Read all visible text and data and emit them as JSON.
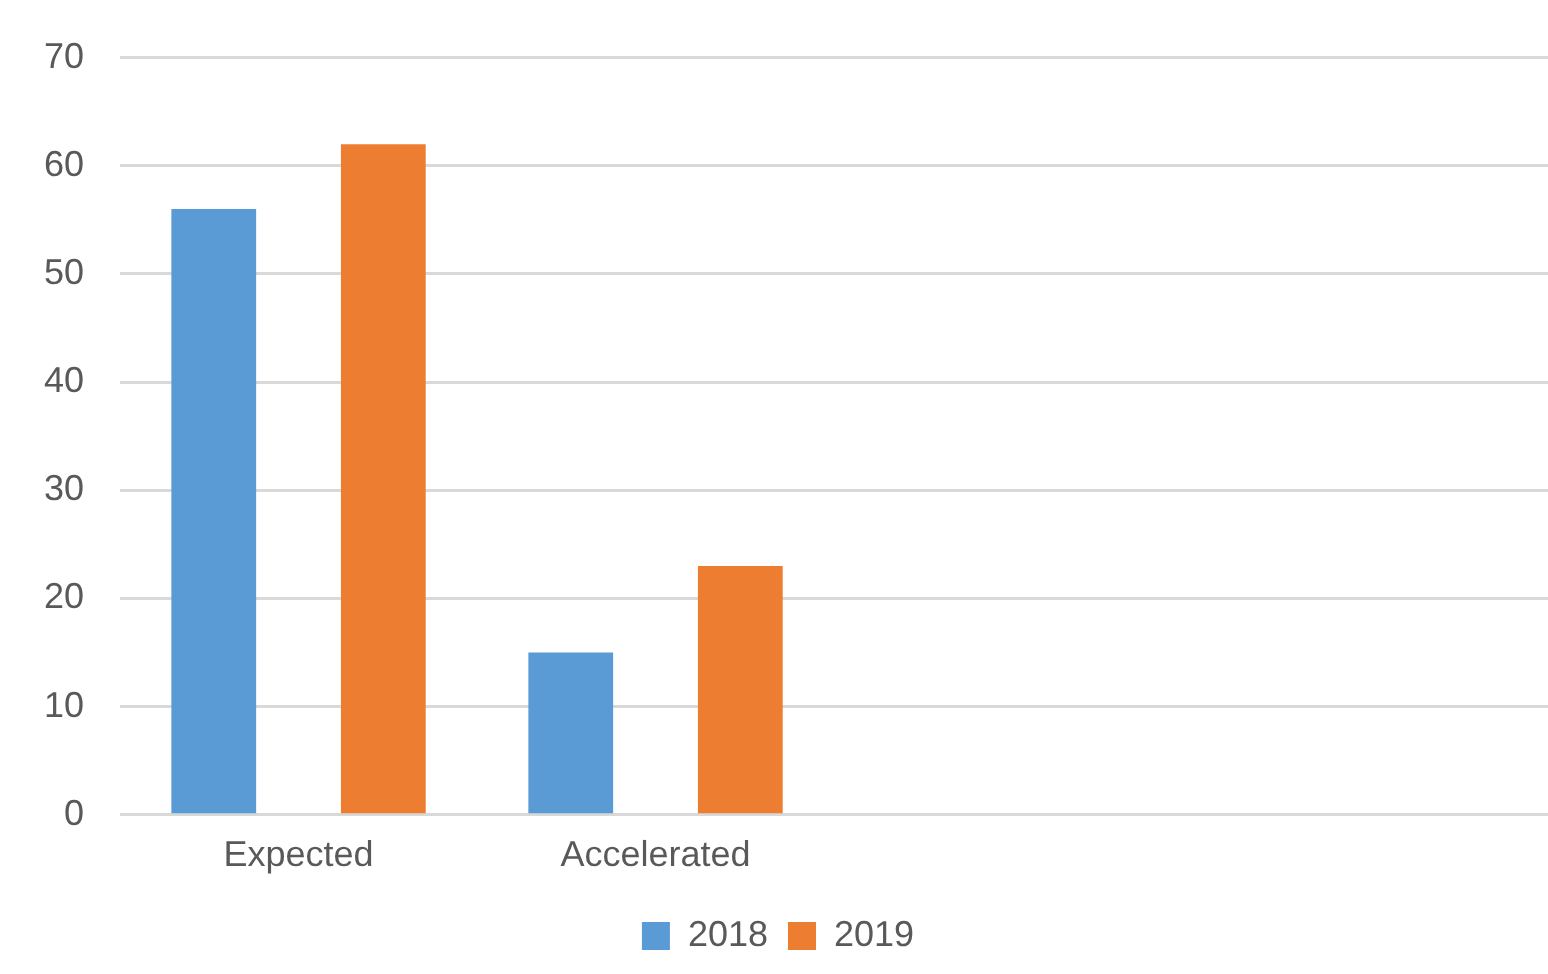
{
  "chart_data": {
    "type": "bar",
    "categories": [
      "Expected",
      "Accelerated",
      null,
      null
    ],
    "series": [
      {
        "name": "2018",
        "color": "#5b9bd5",
        "values": [
          56,
          15,
          null,
          null
        ]
      },
      {
        "name": "2019",
        "color": "#ed7d31",
        "values": [
          62,
          23,
          null,
          null
        ]
      }
    ],
    "ylim": [
      0,
      70
    ],
    "yticks": [
      0,
      10,
      20,
      30,
      40,
      50,
      60,
      70
    ],
    "grid": "y",
    "legend": "bottom"
  }
}
